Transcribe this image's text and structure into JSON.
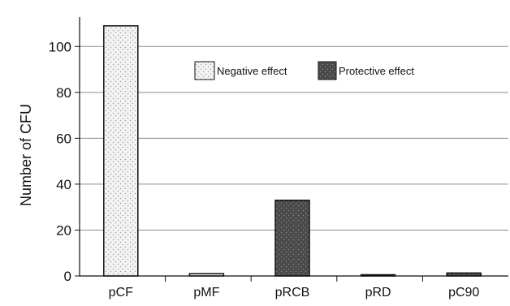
{
  "chart_data": {
    "type": "bar",
    "categories": [
      "pCF",
      "pMF",
      "pRCB",
      "pRD",
      "pC90"
    ],
    "values": [
      109,
      1,
      33,
      0.5,
      1.3
    ],
    "effects": [
      "negative",
      "negative",
      "protective",
      "protective",
      "protective"
    ],
    "ylabel": "Number of CFU",
    "xlabel": "",
    "title": "",
    "ylim": [
      0,
      110
    ],
    "yticks": [
      0,
      20,
      40,
      60,
      80,
      100
    ],
    "grid": true,
    "legend": {
      "position": "top-center",
      "entries": [
        {
          "key": "negative",
          "label": "Negative effect"
        },
        {
          "key": "protective",
          "label": "Protective effect"
        }
      ]
    },
    "colors": {
      "negative_fill": "#f3f3f3",
      "negative_dot": "#9a9a9a",
      "protective_fill": "#4a4a4a",
      "protective_dot": "#8a8a8a",
      "bar_stroke": "#111111",
      "grid": "#8c8c8c"
    }
  }
}
